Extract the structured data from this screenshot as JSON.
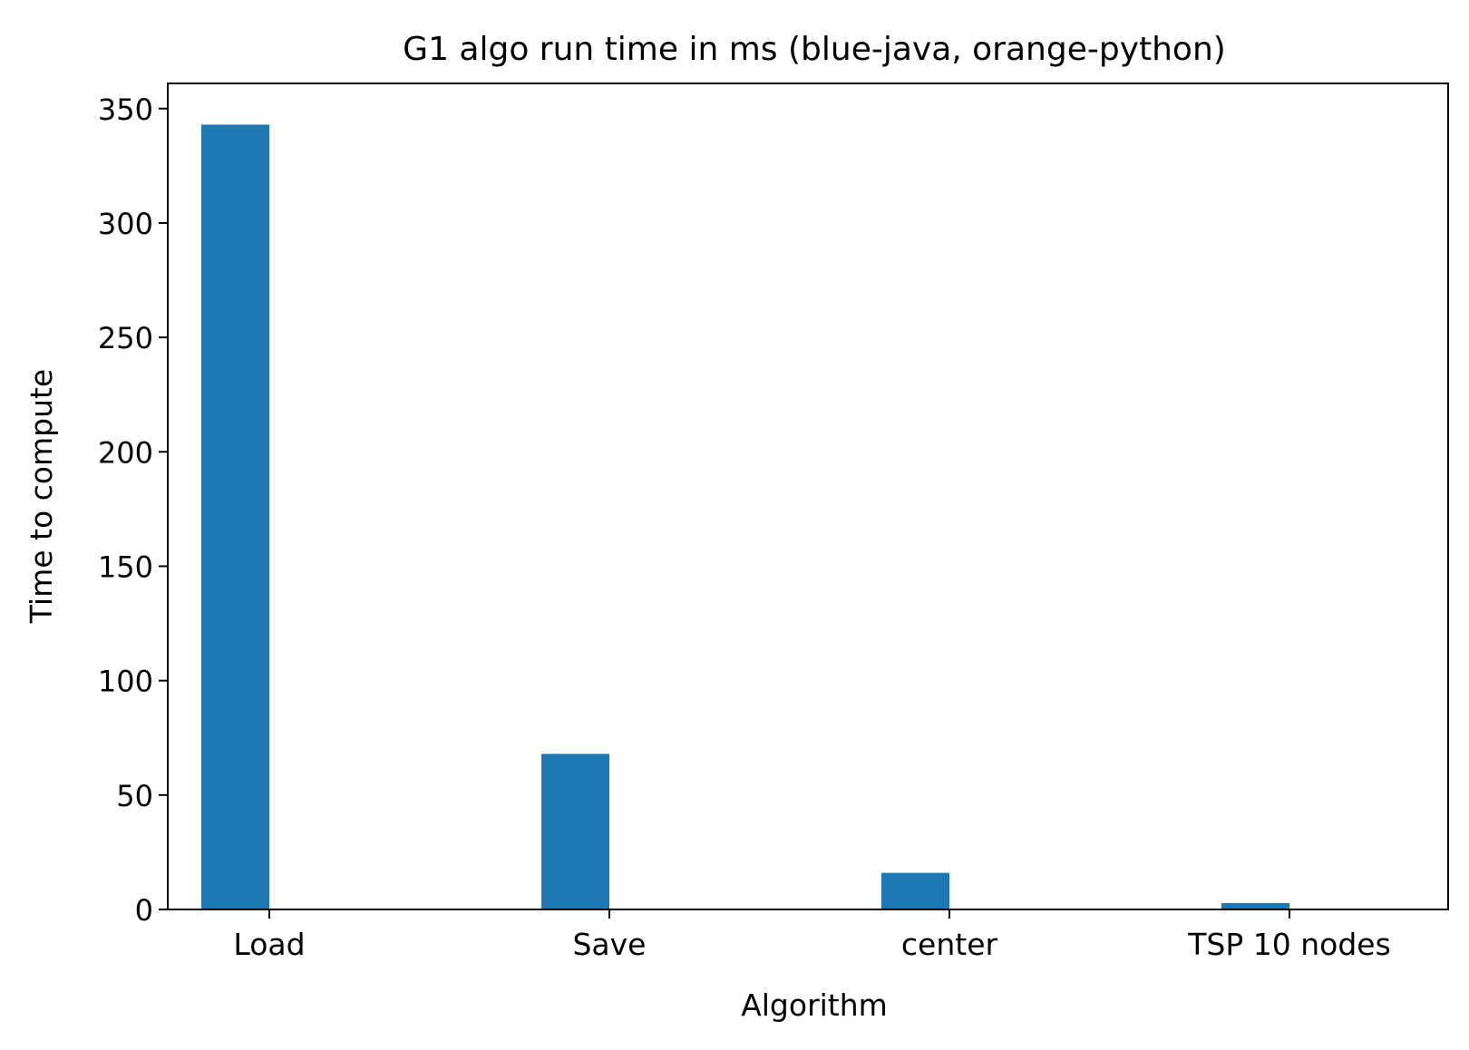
{
  "chart_data": {
    "type": "bar",
    "title": "G1 algo run time in ms (blue-java, orange-python)",
    "xlabel": "Algorithm",
    "ylabel": "Time to compute",
    "categories": [
      "Load",
      "Save",
      "center",
      "TSP 10 nodes"
    ],
    "series": [
      {
        "values": [
          343,
          68,
          16,
          2.8
        ],
        "color": "#1f77b4"
      },
      {
        "values": [
          0.4,
          0.4,
          0.4,
          0.4
        ],
        "color": "#ff7f0e"
      }
    ],
    "ylim": [
      0,
      361
    ],
    "yticks": [
      0,
      50,
      100,
      150,
      200,
      250,
      300,
      350
    ],
    "grid": false,
    "legend": "none"
  }
}
